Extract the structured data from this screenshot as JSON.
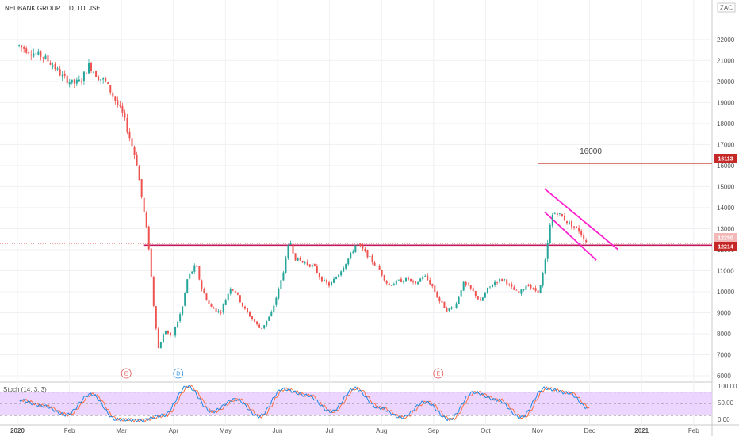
{
  "header": {
    "symbol_title": "NEDBANK GROUP LTD, 1D, JSE",
    "currency": "ZAC"
  },
  "annotations": {
    "target_label": "16000",
    "target_badge": "16113",
    "support_badge": "12214",
    "price_badge": "12250"
  },
  "events": [
    {
      "label": "E",
      "month": "Mar",
      "color": "#e05050"
    },
    {
      "label": "D",
      "month": "Apr",
      "color": "#2a8fe0"
    },
    {
      "label": "E",
      "month": "Sep",
      "color": "#e05050"
    }
  ],
  "stochastic": {
    "label": "Stoch (14, 3, 3)",
    "ticks": [
      "100.00",
      "50.00",
      "0.00"
    ]
  },
  "colors": {
    "up": "#26a69a",
    "down": "#ef5350",
    "support_line": "#c2185b",
    "channel": "#ff20d0",
    "badge_red": "#c62828",
    "stoch_band": "#e6c8ff"
  },
  "chart_data": {
    "type": "candlestick",
    "title": "NEDBANK GROUP LTD, 1D, JSE",
    "ylim": [
      5700,
      23200
    ],
    "y_ticks": [
      6000,
      7000,
      8000,
      9000,
      10000,
      11000,
      12000,
      13000,
      14000,
      15000,
      16000,
      17000,
      18000,
      19000,
      20000,
      21000,
      22000
    ],
    "x_tick_labels": [
      "2020",
      "Feb",
      "Mar",
      "Apr",
      "May",
      "Jun",
      "Jul",
      "Aug",
      "Sep",
      "Oct",
      "Nov",
      "Dec",
      "2021",
      "Feb"
    ],
    "horizontal_levels": [
      {
        "name": "support",
        "value": 12214
      },
      {
        "name": "target",
        "value": 16113
      }
    ],
    "channel": {
      "upper": [
        [
          "2020-11-05",
          14900
        ],
        [
          "2020-12-18",
          12000
        ]
      ],
      "lower": [
        [
          "2020-11-05",
          13800
        ],
        [
          "2020-12-05",
          11500
        ]
      ]
    },
    "close_points": [
      [
        "2020-01-02",
        21700
      ],
      [
        "2020-01-09",
        21400
      ],
      [
        "2020-01-16",
        21200
      ],
      [
        "2020-01-22",
        20800
      ],
      [
        "2020-01-28",
        20200
      ],
      [
        "2020-02-03",
        19900
      ],
      [
        "2020-02-07",
        20000
      ],
      [
        "2020-02-12",
        20800
      ],
      [
        "2020-02-17",
        20200
      ],
      [
        "2020-02-21",
        20000
      ],
      [
        "2020-02-26",
        19200
      ],
      [
        "2020-03-02",
        18400
      ],
      [
        "2020-03-06",
        17300
      ],
      [
        "2020-03-10",
        16200
      ],
      [
        "2020-03-13",
        14500
      ],
      [
        "2020-03-17",
        12400
      ],
      [
        "2020-03-20",
        9500
      ],
      [
        "2020-03-23",
        7300
      ],
      [
        "2020-03-27",
        8200
      ],
      [
        "2020-03-31",
        7800
      ],
      [
        "2020-04-06",
        9200
      ],
      [
        "2020-04-09",
        10600
      ],
      [
        "2020-04-14",
        11300
      ],
      [
        "2020-04-17",
        10200
      ],
      [
        "2020-04-22",
        9300
      ],
      [
        "2020-04-28",
        9000
      ],
      [
        "2020-05-04",
        10200
      ],
      [
        "2020-05-07",
        10000
      ],
      [
        "2020-05-12",
        9200
      ],
      [
        "2020-05-18",
        8600
      ],
      [
        "2020-05-22",
        8200
      ],
      [
        "2020-05-28",
        8900
      ],
      [
        "2020-06-02",
        10200
      ],
      [
        "2020-06-05",
        11200
      ],
      [
        "2020-06-08",
        12500
      ],
      [
        "2020-06-11",
        11600
      ],
      [
        "2020-06-16",
        11400
      ],
      [
        "2020-06-22",
        11200
      ],
      [
        "2020-06-26",
        10600
      ],
      [
        "2020-07-01",
        10300
      ],
      [
        "2020-07-06",
        10800
      ],
      [
        "2020-07-10",
        11300
      ],
      [
        "2020-07-14",
        11800
      ],
      [
        "2020-07-17",
        12300
      ],
      [
        "2020-07-22",
        11900
      ],
      [
        "2020-07-27",
        11400
      ],
      [
        "2020-07-31",
        11000
      ],
      [
        "2020-08-05",
        10300
      ],
      [
        "2020-08-11",
        10500
      ],
      [
        "2020-08-17",
        10600
      ],
      [
        "2020-08-21",
        10300
      ],
      [
        "2020-08-26",
        10800
      ],
      [
        "2020-08-31",
        10300
      ],
      [
        "2020-09-04",
        9600
      ],
      [
        "2020-09-09",
        9100
      ],
      [
        "2020-09-14",
        9400
      ],
      [
        "2020-09-18",
        10400
      ],
      [
        "2020-09-23",
        10100
      ],
      [
        "2020-09-28",
        9500
      ],
      [
        "2020-10-02",
        10100
      ],
      [
        "2020-10-07",
        10500
      ],
      [
        "2020-10-12",
        10600
      ],
      [
        "2020-10-16",
        10200
      ],
      [
        "2020-10-21",
        9900
      ],
      [
        "2020-10-26",
        10400
      ],
      [
        "2020-10-29",
        10100
      ],
      [
        "2020-11-02",
        10000
      ],
      [
        "2020-11-05",
        11200
      ],
      [
        "2020-11-09",
        13600
      ],
      [
        "2020-11-12",
        13800
      ],
      [
        "2020-11-17",
        13400
      ],
      [
        "2020-11-20",
        13200
      ],
      [
        "2020-11-25",
        12900
      ],
      [
        "2020-11-30",
        12250
      ]
    ],
    "stoch_k": [
      [
        "2020-01-02",
        60
      ],
      [
        "2020-01-16",
        45
      ],
      [
        "2020-01-30",
        22
      ],
      [
        "2020-02-13",
        75
      ],
      [
        "2020-02-27",
        10
      ],
      [
        "2020-03-12",
        8
      ],
      [
        "2020-03-26",
        20
      ],
      [
        "2020-04-09",
        95
      ],
      [
        "2020-04-23",
        30
      ],
      [
        "2020-05-07",
        62
      ],
      [
        "2020-05-21",
        18
      ],
      [
        "2020-06-04",
        88
      ],
      [
        "2020-06-18",
        72
      ],
      [
        "2020-07-02",
        30
      ],
      [
        "2020-07-16",
        90
      ],
      [
        "2020-07-30",
        40
      ],
      [
        "2020-08-13",
        15
      ],
      [
        "2020-08-27",
        55
      ],
      [
        "2020-09-10",
        10
      ],
      [
        "2020-09-24",
        80
      ],
      [
        "2020-10-08",
        60
      ],
      [
        "2020-10-22",
        15
      ],
      [
        "2020-11-05",
        90
      ],
      [
        "2020-11-19",
        78
      ],
      [
        "2020-11-30",
        40
      ]
    ]
  }
}
